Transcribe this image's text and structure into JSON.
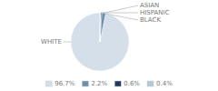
{
  "chart_data": {
    "type": "pie",
    "categories": [
      "WHITE",
      "ASIAN",
      "HISPANIC",
      "BLACK"
    ],
    "values": [
      96.7,
      2.2,
      0.6,
      0.4
    ],
    "value_labels": [
      "96.7%",
      "2.2%",
      "0.6%",
      "0.4%"
    ],
    "colors": [
      "#d4dfe9",
      "#6b92aa",
      "#1b3a5c",
      "#b5c8d8"
    ],
    "legend": "bottom"
  }
}
